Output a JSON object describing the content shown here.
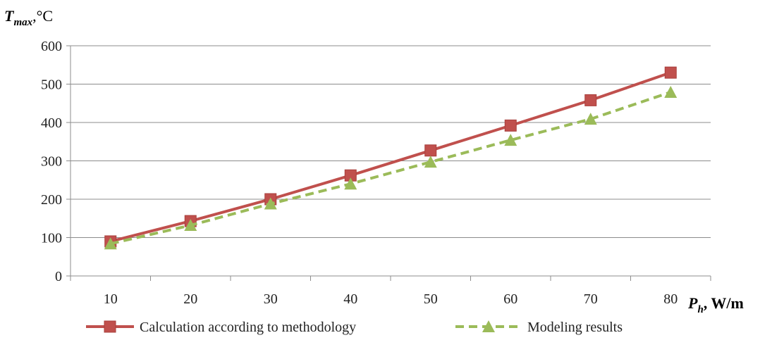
{
  "chart_data": {
    "type": "line",
    "x": [
      10,
      20,
      30,
      40,
      50,
      60,
      70,
      80
    ],
    "categories": [
      "10",
      "20",
      "30",
      "40",
      "50",
      "60",
      "70",
      "80"
    ],
    "series": [
      {
        "name": "Calculation according to methodology",
        "values": [
          90,
          143,
          200,
          262,
          327,
          392,
          458,
          530
        ],
        "color": "#c0504d",
        "marker": "square",
        "dash": "solid"
      },
      {
        "name": "Modeling results",
        "values": [
          84,
          132,
          188,
          240,
          297,
          354,
          409,
          479
        ],
        "color": "#9bbb59",
        "marker": "triangle",
        "dash": "dashed"
      }
    ],
    "y_ticks": [
      "0",
      "100",
      "200",
      "300",
      "400",
      "500",
      "600"
    ],
    "ylim": [
      0,
      600
    ],
    "grid": true,
    "legend": "bottom-center",
    "ylabel": {
      "symbol": "T",
      "subscript": "max",
      "unit": ",°C"
    },
    "xlabel": {
      "symbol": "P",
      "subscript": "h",
      "unit": ", W/m"
    }
  }
}
